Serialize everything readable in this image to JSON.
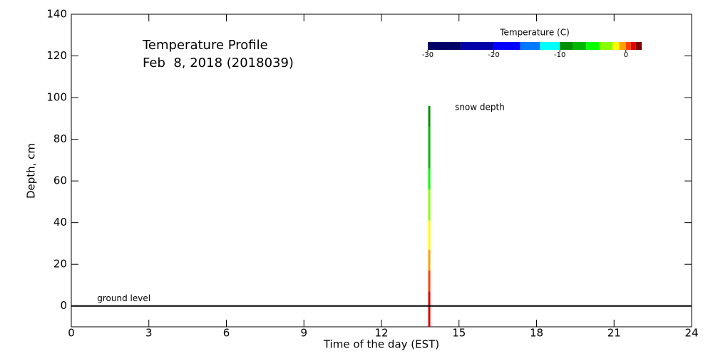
{
  "chart_data": {
    "type": "profile",
    "title": "Temperature Profile",
    "subtitle": "Feb  8, 2018 (2018039)",
    "x_label": "Time of the day (EST)",
    "y_label": "Depth, cm",
    "xlim": [
      0,
      24
    ],
    "xticks": [
      0,
      3,
      6,
      9,
      12,
      15,
      18,
      21,
      24
    ],
    "ylim": [
      -10,
      140
    ],
    "yticks": [
      0,
      20,
      40,
      60,
      80,
      100,
      120,
      140
    ],
    "ground_level": {
      "label": "ground level",
      "value": 0
    },
    "snow_depth": {
      "label": "snow depth",
      "value": 96
    },
    "profile": {
      "time": 13.85,
      "depths": [
        -10,
        7,
        17,
        27,
        41,
        56,
        66,
        86,
        96
      ],
      "temperatures": [
        1.2,
        0.4,
        -0.5,
        -1.5,
        -3,
        -5,
        -7,
        -9
      ]
    },
    "colorbar": {
      "title": "Temperature (C)",
      "bounds": [
        -30,
        -25,
        -20,
        -16,
        -13,
        -10,
        -8,
        -6,
        -4,
        -2,
        -1,
        0,
        0.75,
        1.5,
        2.4
      ],
      "colors": [
        "#000066",
        "#0000a8",
        "#0000ff",
        "#0078ff",
        "#00ffff",
        "#009000",
        "#00b800",
        "#00ff00",
        "#88ff00",
        "#ffff00",
        "#ffa000",
        "#ff4000",
        "#e00000",
        "#800000"
      ],
      "ticks": [
        -30,
        -20,
        -10,
        0
      ]
    }
  }
}
